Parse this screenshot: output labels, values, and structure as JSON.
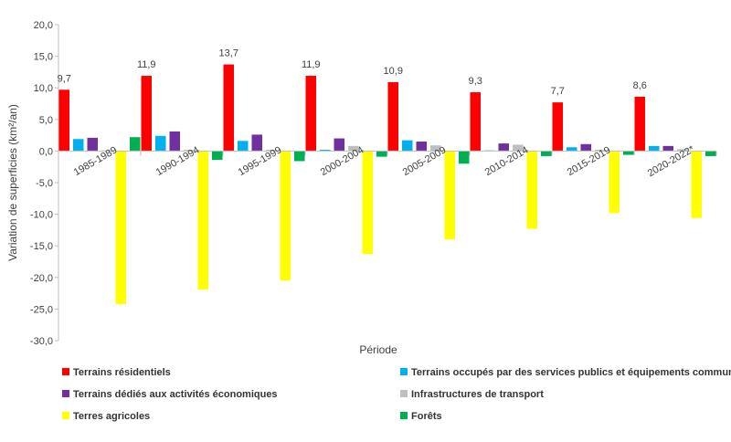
{
  "chart_data": {
    "type": "bar",
    "title": "",
    "xlabel": "Période",
    "ylabel": "Variation de superficies (km²/an)",
    "ylim": [
      -30,
      20
    ],
    "yticks": [
      20,
      15,
      10,
      5,
      0,
      -5,
      -10,
      -15,
      -20,
      -25,
      -30
    ],
    "ytick_labels": [
      "20,0",
      "15,0",
      "10,0",
      "5,0",
      "0,0",
      "-5,0",
      "-10,0",
      "-15,0",
      "-20,0",
      "-25,0",
      "-30,0"
    ],
    "grid": false,
    "legend_position": "bottom",
    "categories": [
      "1985-1989",
      "1990-1994",
      "1995-1999",
      "2000-2004",
      "2005-2009",
      "2010-2014",
      "2015-2019",
      "2020-2022*"
    ],
    "series": [
      {
        "name": "Terrains résidentiels",
        "color": "#ff0000",
        "values": [
          9.7,
          11.9,
          13.7,
          11.9,
          10.9,
          9.3,
          7.7,
          8.6
        ]
      },
      {
        "name": "Terrains occupés par des services publics et équipements communautaires",
        "color": "#00b0f0",
        "values": [
          1.9,
          2.4,
          1.6,
          0.2,
          1.7,
          0.1,
          0.6,
          0.8
        ]
      },
      {
        "name": "Terrains dédiés aux activités économiques",
        "color": "#7030a0",
        "values": [
          2.1,
          3.1,
          2.6,
          2.0,
          1.5,
          1.2,
          1.1,
          0.8
        ]
      },
      {
        "name": "Infrastructures de transport",
        "color": "#bfbfbf",
        "values": [
          0.1,
          0.2,
          0.2,
          0.8,
          0.9,
          1.0,
          0.2,
          0.3
        ]
      },
      {
        "name": "Terres agricoles",
        "color": "#ffff00",
        "values": [
          -24.2,
          -21.9,
          -20.5,
          -16.3,
          -14.0,
          -12.3,
          -9.8,
          -10.6
        ]
      },
      {
        "name": "Forêts",
        "color": "#00b050",
        "values": [
          2.2,
          -1.4,
          -1.6,
          -0.9,
          -2.0,
          -0.8,
          -0.6,
          -0.8
        ]
      }
    ],
    "data_labels": {
      "series": "Terrains résidentiels",
      "texts": [
        "9,7",
        "11,9",
        "13,7",
        "11,9",
        "10,9",
        "9,3",
        "7,7",
        "8,6"
      ]
    }
  }
}
